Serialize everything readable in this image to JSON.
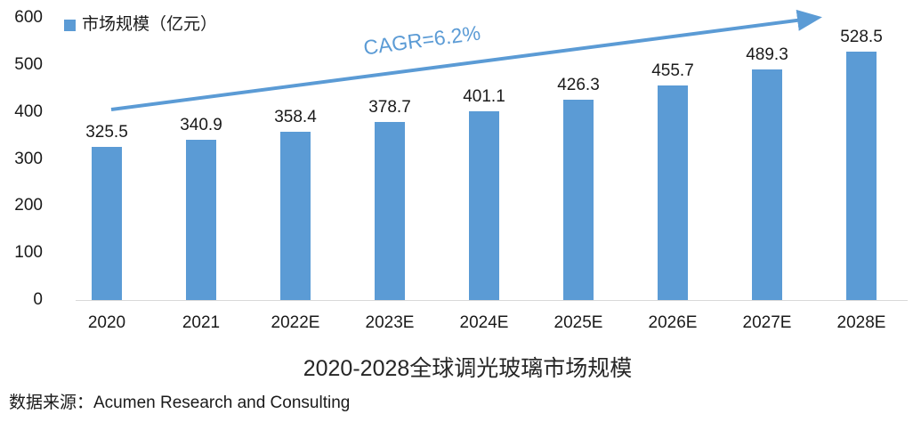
{
  "chart_data": {
    "type": "bar",
    "title": "2020-2028全球调光玻璃市场规模",
    "legend": "市场规模（亿元）",
    "categories": [
      "2020",
      "2021",
      "2022E",
      "2023E",
      "2024E",
      "2025E",
      "2026E",
      "2027E",
      "2028E"
    ],
    "values": [
      325.5,
      340.9,
      358.4,
      378.7,
      401.1,
      426.3,
      455.7,
      489.3,
      528.5
    ],
    "ylim": [
      0,
      600
    ],
    "yticks": [
      0,
      100,
      200,
      300,
      400,
      500,
      600
    ],
    "annotation": "CAGR=6.2%",
    "bar_color": "#5b9bd5",
    "arrow_color": "#5b9bd5",
    "annotation_color": "#5b9bd5",
    "baseline_color": "#d9d9d9",
    "legend_position": "top-left",
    "grid": false
  },
  "source": {
    "label": "数据来源：Acumen Research and Consulting"
  }
}
